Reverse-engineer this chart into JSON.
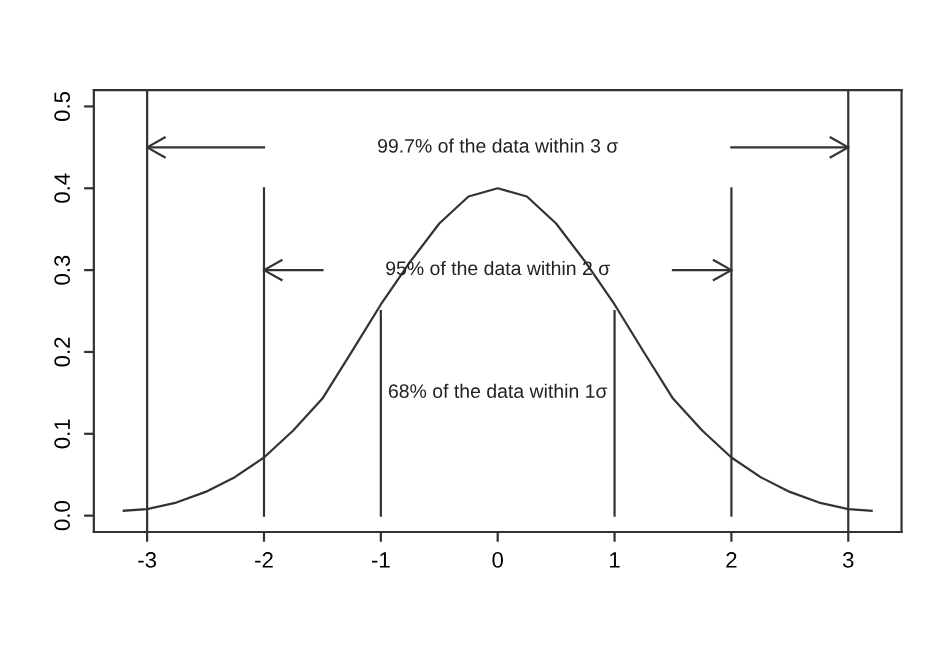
{
  "chart_data": {
    "type": "line",
    "xlim": [
      -3.456,
      3.456
    ],
    "ylim": [
      -0.02,
      0.52
    ],
    "xticks": [
      {
        "value": -3,
        "label": "-3"
      },
      {
        "value": -2,
        "label": "-2"
      },
      {
        "value": -1,
        "label": "-1"
      },
      0,
      1,
      2,
      3
    ],
    "yticks": [
      {
        "value": 0,
        "label": "0.0"
      },
      0.1,
      0.2,
      0.3,
      0.4,
      0.5
    ],
    "grid": false,
    "marker": "none",
    "line_style": "solid",
    "series": [
      {
        "color": "#333333",
        "x": [
          -3.2,
          -3.0,
          -2.75,
          -2.5,
          -2.25,
          -2.0,
          -1.75,
          -1.5,
          -1.25,
          -1.0,
          -0.75,
          -0.5,
          -0.25,
          0,
          0.25,
          0.5,
          0.75,
          1.0,
          1.25,
          1.5,
          1.75,
          2.0,
          2.25,
          2.5,
          2.75,
          3.0,
          3.2
        ],
        "values": [
          0.006,
          0.008,
          0.016,
          0.029,
          0.047,
          0.071,
          0.104,
          0.143,
          0.2,
          0.258,
          0.31,
          0.357,
          0.39,
          0.4,
          0.39,
          0.357,
          0.31,
          0.258,
          0.2,
          0.143,
          0.104,
          0.071,
          0.047,
          0.029,
          0.016,
          0.008,
          0.006
        ]
      },
      {
        "color": "#333333",
        "x": [
          -2,
          -2
        ],
        "values": [
          0,
          0.4
        ]
      },
      {
        "color": "#333333",
        "x": [
          2,
          2
        ],
        "values": [
          0,
          0.4
        ]
      },
      {
        "color": "#333333",
        "x": [
          -1,
          -1
        ],
        "values": [
          0,
          0.25
        ]
      },
      {
        "color": "#333333",
        "x": [
          1,
          1
        ],
        "values": [
          0,
          0.25
        ]
      },
      {
        "color": "#333333",
        "x": [
          -2,
          -3
        ],
        "values": [
          0.45,
          0.45
        ]
      },
      {
        "color": "#333333",
        "x": [
          2,
          3
        ],
        "values": [
          0.45,
          0.45
        ]
      },
      {
        "color": "#333333",
        "x": [
          -1.5,
          -2
        ],
        "values": [
          0.3,
          0.3
        ]
      },
      {
        "color": "#333333",
        "x": [
          1.5,
          2
        ],
        "values": [
          0.3,
          0.3
        ]
      }
    ],
    "ref_lines": [
      {
        "axis": "x",
        "value": -3,
        "color": "#333333"
      },
      {
        "axis": "x",
        "value": 3,
        "color": "#333333"
      }
    ],
    "annotations": [
      "99.7% of the data within 3 σ",
      "95% of the data within 2 σ",
      "68% of the data within 1σ"
    ]
  }
}
